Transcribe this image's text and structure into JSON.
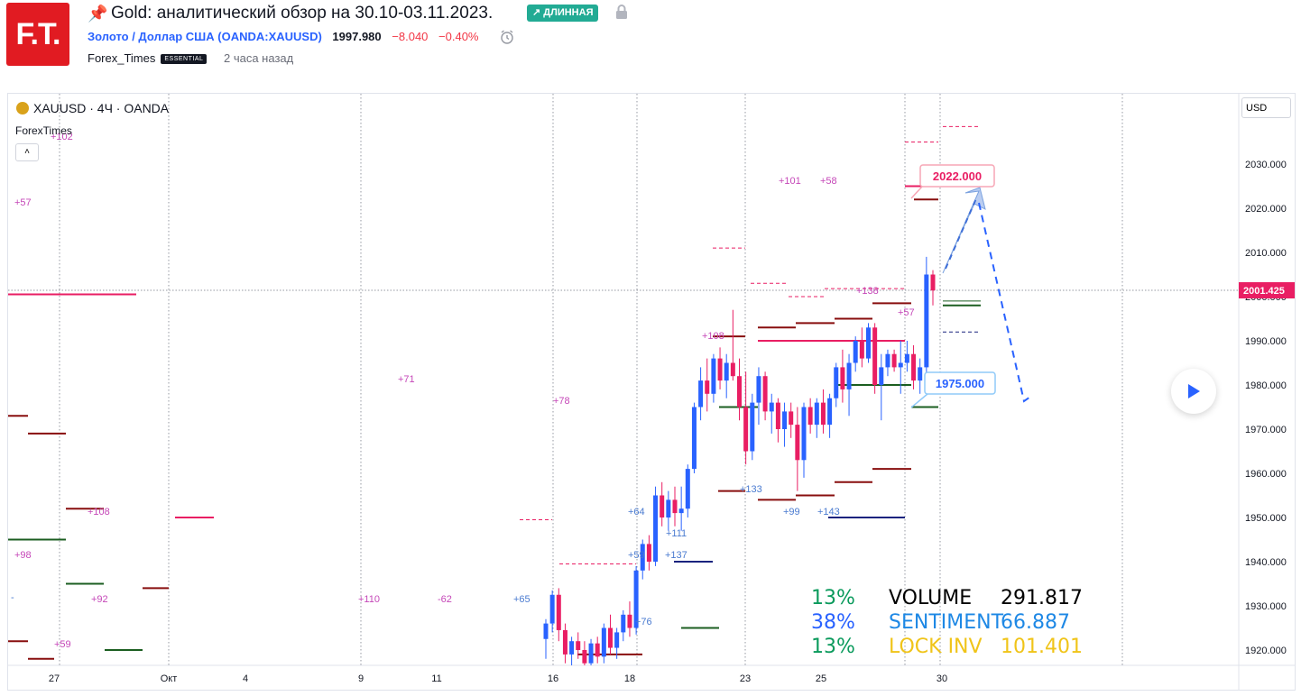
{
  "header": {
    "logo_text": "F.T.",
    "title": "Gold: аналитический обзор на 30.10-03.11.2023.",
    "badge_long": "↗ ДЛИННАЯ",
    "symbol_name": "Золото / Доллар США",
    "symbol_code": "(OANDA:XAUUSD)",
    "price": "1997.980",
    "change": "−8.040",
    "change_pct": "−0.40%",
    "author": "Forex_Times",
    "author_badge": "ESSENTIAL",
    "time_ago": "2 часа назад"
  },
  "legend": {
    "symbol": "XAUUSD · 4Ч · OANDA",
    "indicator": "ForexTimes",
    "collapse": "˄"
  },
  "currency_button": "USD",
  "colors": {
    "up": "#2962ff",
    "down": "#e91e63",
    "pink_level": "#e91e63",
    "dark_red_level": "#880e0e",
    "green_level": "#1b5e20",
    "target_up_border": "#f7a6b5",
    "target_down_border": "#90caf9"
  },
  "chart_data": {
    "type": "candlestick",
    "symbol": "XAUUSD",
    "timeframe": "4Ч",
    "ylim": [
      1915,
      2040
    ],
    "y_ticks": [
      "2030.000",
      "2020.000",
      "2010.000",
      "2000.000",
      "1990.000",
      "1980.000",
      "1970.000",
      "1960.000",
      "1950.000",
      "1940.000",
      "1930.000",
      "1920.000"
    ],
    "x_ticks": [
      "27",
      "Окт",
      "4",
      "9",
      "11",
      "16",
      "18",
      "23",
      "25",
      "30"
    ],
    "current_price_label": "2001.425",
    "current_price": 2001.425,
    "targets": [
      {
        "label": "2022.000",
        "value": 2022.0,
        "kind": "up"
      },
      {
        "label": "1975.000",
        "value": 1975.0,
        "kind": "down"
      }
    ],
    "candles": [
      [
        1922.5,
        1927.0,
        1918.0,
        1926.0
      ],
      [
        1926.0,
        1933.5,
        1924.0,
        1932.5
      ],
      [
        1932.5,
        1934.0,
        1922.0,
        1924.5
      ],
      [
        1924.5,
        1926.0,
        1917.0,
        1919.0
      ],
      [
        1919.0,
        1923.0,
        1916.0,
        1922.0
      ],
      [
        1922.0,
        1924.0,
        1918.0,
        1920.0
      ],
      [
        1920.0,
        1922.0,
        1915.0,
        1917.0
      ],
      [
        1917.0,
        1922.5,
        1916.0,
        1921.5
      ],
      [
        1921.5,
        1923.0,
        1917.0,
        1918.5
      ],
      [
        1918.5,
        1926.0,
        1917.0,
        1925.0
      ],
      [
        1925.0,
        1928.0,
        1919.0,
        1920.5
      ],
      [
        1920.5,
        1925.0,
        1918.0,
        1924.0
      ],
      [
        1924.0,
        1929.0,
        1922.0,
        1928.0
      ],
      [
        1928.0,
        1931.0,
        1923.0,
        1925.0
      ],
      [
        1925.0,
        1939.0,
        1923.5,
        1938.0
      ],
      [
        1938.0,
        1945.0,
        1936.0,
        1944.0
      ],
      [
        1944.0,
        1946.0,
        1938.0,
        1940.0
      ],
      [
        1940.0,
        1957.0,
        1939.0,
        1955.0
      ],
      [
        1955.0,
        1958.0,
        1948.0,
        1950.0
      ],
      [
        1950.0,
        1956.0,
        1947.0,
        1954.0
      ],
      [
        1954.0,
        1957.0,
        1948.0,
        1951.0
      ],
      [
        1951.0,
        1957.0,
        1947.0,
        1952.0
      ],
      [
        1952.0,
        1962.0,
        1950.0,
        1961.0
      ],
      [
        1961.0,
        1976.0,
        1960.0,
        1975.0
      ],
      [
        1975.0,
        1984.0,
        1972.0,
        1981.0
      ],
      [
        1981.0,
        1986.0,
        1974.0,
        1978.0
      ],
      [
        1978.0,
        1987.0,
        1976.0,
        1986.0
      ],
      [
        1986.0,
        1988.5,
        1979.0,
        1981.0
      ],
      [
        1981.0,
        1987.0,
        1977.0,
        1985.0
      ],
      [
        1985.0,
        1997.0,
        1981.0,
        1982.0
      ],
      [
        1982.0,
        1986.0,
        1972.0,
        1975.0
      ],
      [
        1975.0,
        1983.0,
        1962.0,
        1965.0
      ],
      [
        1965.0,
        1978.0,
        1963.0,
        1976.0
      ],
      [
        1976.0,
        1984.0,
        1971.0,
        1982.0
      ],
      [
        1982.0,
        1983.0,
        1972.0,
        1974.0
      ],
      [
        1974.0,
        1978.0,
        1969.0,
        1976.0
      ],
      [
        1976.0,
        1977.0,
        1967.0,
        1970.0
      ],
      [
        1970.0,
        1976.0,
        1966.0,
        1974.0
      ],
      [
        1974.0,
        1976.0,
        1968.0,
        1971.0
      ],
      [
        1971.0,
        1975.0,
        1956.0,
        1963.0
      ],
      [
        1963.0,
        1976.0,
        1959.0,
        1975.0
      ],
      [
        1975.0,
        1977.0,
        1969.0,
        1971.0
      ],
      [
        1971.0,
        1977.0,
        1968.0,
        1976.0
      ],
      [
        1976.0,
        1979.0,
        1969.0,
        1971.0
      ],
      [
        1971.0,
        1978.0,
        1968.0,
        1977.0
      ],
      [
        1977.0,
        1985.0,
        1975.0,
        1984.0
      ],
      [
        1984.0,
        1988.0,
        1976.0,
        1979.0
      ],
      [
        1979.0,
        1987.0,
        1973.0,
        1985.0
      ],
      [
        1985.0,
        1991.0,
        1983.0,
        1990.0
      ],
      [
        1990.0,
        1993.0,
        1984.0,
        1986.0
      ],
      [
        1986.0,
        1994.0,
        1985.0,
        1993.0
      ],
      [
        1993.0,
        1994.0,
        1978.0,
        1980.0
      ],
      [
        1980.0,
        1987.0,
        1972.0,
        1984.0
      ],
      [
        1984.0,
        1988.0,
        1982.0,
        1987.0
      ],
      [
        1987.0,
        1988.0,
        1983.0,
        1984.0
      ],
      [
        1984.0,
        1990.0,
        1978.0,
        1985.0
      ],
      [
        1985.0,
        1990.0,
        1983.0,
        1987.0
      ],
      [
        1987.0,
        1989.0,
        1979.0,
        1981.0
      ],
      [
        1981.0,
        1986.0,
        1978.0,
        1984.0
      ],
      [
        1984.0,
        2009.0,
        1982.0,
        2005.0
      ],
      [
        2005.0,
        2006.0,
        1998.0,
        2001.4
      ]
    ],
    "labels": [
      {
        "text": "+102",
        "color": "pink"
      },
      {
        "text": "+57",
        "color": "pink"
      },
      {
        "text": "+98",
        "color": "pink"
      },
      {
        "text": "-",
        "color": "blue"
      },
      {
        "text": "+59",
        "color": "pink"
      },
      {
        "text": "+108",
        "color": "pink"
      },
      {
        "text": "+92",
        "color": "pink"
      },
      {
        "text": "+110",
        "color": "pink"
      },
      {
        "text": "-62",
        "color": "pink"
      },
      {
        "text": "+71",
        "color": "pink"
      },
      {
        "text": "+78",
        "color": "pink"
      },
      {
        "text": "+65",
        "color": "blue"
      },
      {
        "text": "+64",
        "color": "blue"
      },
      {
        "text": "+59",
        "color": "blue"
      },
      {
        "text": "+76",
        "color": "blue"
      },
      {
        "text": "+111",
        "color": "blue"
      },
      {
        "text": "+137",
        "color": "blue"
      },
      {
        "text": "+108",
        "color": "pink"
      },
      {
        "text": "+133",
        "color": "blue"
      },
      {
        "text": "+99",
        "color": "blue"
      },
      {
        "text": "+143",
        "color": "blue"
      },
      {
        "text": "+101",
        "color": "pink"
      },
      {
        "text": "+58",
        "color": "pink"
      },
      {
        "text": "+138",
        "color": "pink"
      },
      {
        "text": "+57",
        "color": "pink"
      }
    ]
  },
  "stats": [
    {
      "pct": "13%",
      "label": "VOLUME",
      "value": "291.817",
      "pct_color": "#0a9a5c",
      "label_color": "#000000",
      "value_color": "#000000"
    },
    {
      "pct": "38%",
      "label": "SENTIMENT",
      "value": "66.887",
      "pct_color": "#2962ff",
      "label_color": "#1e88e5",
      "value_color": "#1e88e5"
    },
    {
      "pct": "13%",
      "label": "LOCK INV",
      "value": "101.401",
      "pct_color": "#0a9a5c",
      "label_color": "#f0c419",
      "value_color": "#f0c419"
    }
  ]
}
